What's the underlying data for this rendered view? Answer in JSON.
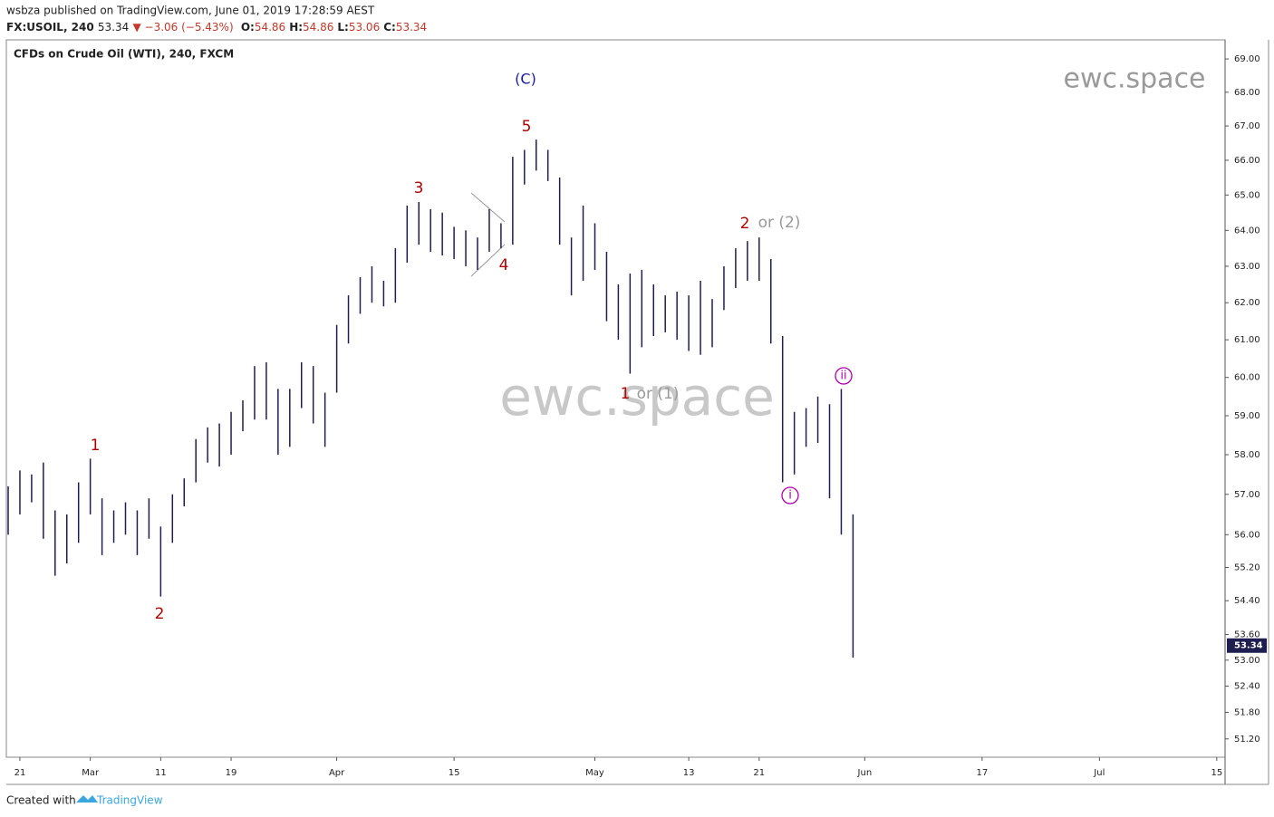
{
  "header": {
    "published": "wsbza published on TradingView.com, June 01, 2019 17:28:59 AEST",
    "symbol": "FX:USOIL, 240",
    "last": "53.34",
    "change": "▼ −3.06 (−5.43%)",
    "ohlc": [
      {
        "label": "O:",
        "value": "54.86"
      },
      {
        "label": "H:",
        "value": "54.86"
      },
      {
        "label": "L:",
        "value": "53.06"
      },
      {
        "label": "C:",
        "value": "53.34"
      }
    ]
  },
  "footer": {
    "created": "Created with",
    "brand": "TradingView"
  },
  "chart_data": {
    "type": "ohlc",
    "title": "CFDs on Crude Oil (WTI), 240, FXCM",
    "watermarks": [
      "ewc.space",
      "ewc.space"
    ],
    "log_scale": true,
    "color": "#1e1e50",
    "x": [
      "2019-02-20",
      "2019-02-21",
      "2019-02-22",
      "2019-02-25",
      "2019-02-26",
      "2019-02-27",
      "2019-02-28",
      "2019-03-01",
      "2019-03-04",
      "2019-03-05",
      "2019-03-06",
      "2019-03-07",
      "2019-03-08",
      "2019-03-11",
      "2019-03-12",
      "2019-03-13",
      "2019-03-14",
      "2019-03-15",
      "2019-03-18",
      "2019-03-19",
      "2019-03-20",
      "2019-03-21",
      "2019-03-22",
      "2019-03-25",
      "2019-03-26",
      "2019-03-27",
      "2019-03-28",
      "2019-03-29",
      "2019-04-01",
      "2019-04-02",
      "2019-04-03",
      "2019-04-04",
      "2019-04-05",
      "2019-04-08",
      "2019-04-09",
      "2019-04-10",
      "2019-04-11",
      "2019-04-12",
      "2019-04-15",
      "2019-04-16",
      "2019-04-17",
      "2019-04-18",
      "2019-04-19",
      "2019-04-22",
      "2019-04-23",
      "2019-04-24",
      "2019-04-25",
      "2019-04-26",
      "2019-04-29",
      "2019-04-30",
      "2019-05-01",
      "2019-05-02",
      "2019-05-03",
      "2019-05-06",
      "2019-05-07",
      "2019-05-08",
      "2019-05-09",
      "2019-05-10",
      "2019-05-13",
      "2019-05-14",
      "2019-05-15",
      "2019-05-16",
      "2019-05-17",
      "2019-05-20",
      "2019-05-21",
      "2019-05-22",
      "2019-05-23",
      "2019-05-24",
      "2019-05-27",
      "2019-05-28",
      "2019-05-29",
      "2019-05-30",
      "2019-05-31"
    ],
    "high": [
      57.2,
      57.6,
      57.5,
      57.8,
      56.6,
      56.5,
      57.3,
      57.9,
      56.9,
      56.6,
      56.8,
      56.6,
      56.9,
      56.2,
      57.0,
      57.4,
      58.4,
      58.7,
      58.8,
      59.1,
      59.4,
      60.3,
      60.4,
      59.7,
      59.7,
      60.4,
      60.3,
      59.6,
      61.4,
      62.2,
      62.7,
      63.0,
      62.6,
      63.5,
      64.7,
      64.8,
      64.6,
      64.5,
      64.1,
      64.0,
      63.8,
      64.6,
      64.2,
      66.1,
      66.3,
      66.6,
      66.3,
      65.5,
      63.8,
      64.7,
      64.2,
      63.4,
      62.5,
      62.8,
      62.9,
      62.5,
      62.2,
      62.3,
      62.2,
      62.6,
      62.1,
      63.0,
      63.5,
      63.7,
      63.8,
      63.2,
      61.1,
      59.1,
      59.2,
      59.5,
      59.3,
      59.7,
      56.5
    ],
    "low": [
      56.0,
      56.5,
      56.8,
      55.9,
      55.0,
      55.3,
      55.8,
      56.5,
      55.5,
      55.8,
      56.0,
      55.5,
      55.9,
      54.5,
      55.8,
      56.7,
      57.3,
      57.8,
      57.7,
      58.0,
      58.6,
      58.9,
      58.9,
      58.0,
      58.2,
      59.2,
      58.8,
      58.2,
      59.6,
      60.9,
      61.7,
      62.0,
      61.9,
      62.0,
      63.1,
      63.6,
      63.4,
      63.3,
      63.2,
      63.0,
      62.9,
      63.4,
      63.5,
      63.6,
      65.3,
      65.7,
      65.4,
      63.6,
      62.2,
      62.6,
      62.9,
      61.5,
      61.0,
      60.1,
      60.8,
      61.1,
      61.2,
      61.0,
      60.7,
      60.6,
      60.8,
      61.8,
      62.4,
      62.6,
      62.6,
      60.9,
      57.3,
      57.5,
      58.2,
      58.3,
      56.9,
      56.0,
      53.06
    ],
    "last_price": 53.34,
    "ylim": [
      50.79,
      69.58
    ],
    "yticks": [
      {
        "value": 51.2,
        "label": "51.20"
      },
      {
        "value": 51.8,
        "label": "51.80"
      },
      {
        "value": 52.4,
        "label": "52.40"
      },
      {
        "value": 53,
        "label": "53.00"
      },
      {
        "value": 53.6,
        "label": "53.60"
      },
      {
        "value": 54.4,
        "label": "54.40"
      },
      {
        "value": 55.2,
        "label": "55.20"
      },
      {
        "value": 56,
        "label": "56.00"
      },
      {
        "value": 57,
        "label": "57.00"
      },
      {
        "value": 58,
        "label": "58.00"
      },
      {
        "value": 59,
        "label": "59.00"
      },
      {
        "value": 60,
        "label": "60.00"
      },
      {
        "value": 61,
        "label": "61.00"
      },
      {
        "value": 62,
        "label": "62.00"
      },
      {
        "value": 63,
        "label": "63.00"
      },
      {
        "value": 64,
        "label": "64.00"
      },
      {
        "value": 65,
        "label": "65.00"
      },
      {
        "value": 66,
        "label": "66.00"
      },
      {
        "value": 67,
        "label": "67.00"
      },
      {
        "value": 68,
        "label": "68.00"
      },
      {
        "value": 69,
        "label": "69.00"
      }
    ],
    "xticks": [
      {
        "value": "2019-02-21",
        "label": "21"
      },
      {
        "value": "2019-03-01",
        "label": "Mar"
      },
      {
        "value": "2019-03-11",
        "label": "11"
      },
      {
        "value": "2019-03-19",
        "label": "19"
      },
      {
        "value": "2019-04-01",
        "label": "Apr"
      },
      {
        "value": "2019-04-15",
        "label": "15"
      },
      {
        "value": "2019-05-01",
        "label": "May"
      },
      {
        "value": "2019-05-13",
        "label": "13"
      },
      {
        "value": "2019-05-21",
        "label": "21"
      },
      {
        "value": "2019-06-03",
        "label": "Jun"
      },
      {
        "value": "2019-06-17",
        "label": "17"
      },
      {
        "value": "2019-07-01",
        "label": "Jul"
      },
      {
        "value": "2019-07-15",
        "label": "15"
      }
    ],
    "annotations": [
      {
        "text": "(C)",
        "color": "#1a1aa6"
      },
      {
        "text": "5",
        "color": "#b00000"
      },
      {
        "text": "3",
        "color": "#b00000"
      },
      {
        "text": "4",
        "color": "#b00000"
      },
      {
        "text": "1",
        "color": "#b00000"
      },
      {
        "text": "2",
        "color": "#b00000"
      },
      {
        "text": "2",
        "color": "#b00000"
      },
      {
        "text": "or (2)",
        "color": "#9a9a9a"
      },
      {
        "text": "1",
        "color": "#b00000"
      },
      {
        "text": "or (1)",
        "color": "#9a9a9a"
      },
      {
        "text": "i",
        "color": "#b000b0"
      },
      {
        "text": "ii",
        "color": "#b000b0"
      }
    ]
  }
}
